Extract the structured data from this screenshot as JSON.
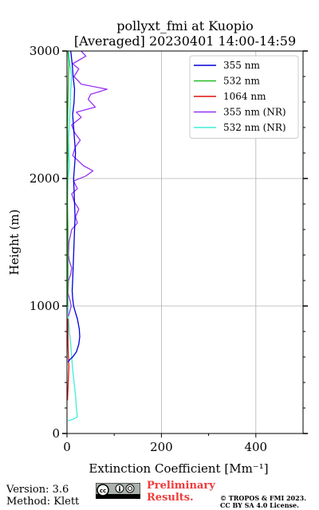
{
  "chart_data": {
    "type": "line",
    "title": "pollyxt_fmi at Kuopio",
    "subtitle": "[Averaged] 20230401 14:00-14:59",
    "xlabel": "Extinction Coefficient [Mm⁻¹]",
    "ylabel": "Height (m)",
    "xlim": [
      0,
      500
    ],
    "ylim": [
      0,
      3000
    ],
    "x_ticks": [
      0,
      200,
      400
    ],
    "y_ticks": [
      0,
      1000,
      2000,
      3000
    ],
    "grid": true,
    "legend_position": "top-right",
    "series": [
      {
        "name": "355 nm",
        "color": "#0000dd",
        "points": [
          [
            2,
            560
          ],
          [
            6,
            580
          ],
          [
            12,
            600
          ],
          [
            20,
            640
          ],
          [
            25,
            700
          ],
          [
            27,
            760
          ],
          [
            26,
            820
          ],
          [
            22,
            900
          ],
          [
            17,
            960
          ],
          [
            14,
            1000
          ],
          [
            12,
            1060
          ],
          [
            11,
            1120
          ],
          [
            12,
            1200
          ],
          [
            13,
            1300
          ],
          [
            14,
            1400
          ],
          [
            15,
            1500
          ],
          [
            16,
            1600
          ],
          [
            17,
            1700
          ],
          [
            16,
            1800
          ],
          [
            15,
            1900
          ],
          [
            14,
            2000
          ],
          [
            16,
            2100
          ],
          [
            18,
            2200
          ],
          [
            16,
            2300
          ],
          [
            14,
            2400
          ],
          [
            12,
            2500
          ],
          [
            15,
            2600
          ],
          [
            16,
            2700
          ],
          [
            13,
            2800
          ],
          [
            11,
            2900
          ],
          [
            8,
            3000
          ]
        ]
      },
      {
        "name": "532 nm",
        "color": "#22bb22",
        "points": [
          [
            1,
            1000
          ],
          [
            2,
            1200
          ],
          [
            2,
            1400
          ],
          [
            2,
            1600
          ],
          [
            1,
            1800
          ],
          [
            1,
            2000
          ],
          [
            2,
            2200
          ],
          [
            1,
            2400
          ],
          [
            2,
            2600
          ],
          [
            3,
            2800
          ],
          [
            4,
            2900
          ],
          [
            2,
            3000
          ]
        ]
      },
      {
        "name": "1064 nm",
        "color": "#dd1111",
        "points": [
          [
            1,
            260
          ],
          [
            2,
            350
          ],
          [
            3,
            440
          ],
          [
            4,
            520
          ],
          [
            3,
            600
          ],
          [
            2,
            700
          ],
          [
            2,
            800
          ],
          [
            2,
            900
          ]
        ]
      },
      {
        "name": "355 nm (NR)",
        "color": "#9a30f5",
        "points": [
          [
            3,
            920
          ],
          [
            6,
            960
          ],
          [
            9,
            1000
          ],
          [
            6,
            1050
          ],
          [
            2,
            1100
          ],
          [
            3,
            1200
          ],
          [
            8,
            1250
          ],
          [
            10,
            1300
          ],
          [
            5,
            1350
          ],
          [
            3,
            1400
          ],
          [
            4,
            1500
          ],
          [
            10,
            1600
          ],
          [
            22,
            1650
          ],
          [
            18,
            1700
          ],
          [
            25,
            1760
          ],
          [
            15,
            1820
          ],
          [
            10,
            1880
          ],
          [
            22,
            1920
          ],
          [
            14,
            1980
          ],
          [
            40,
            2020
          ],
          [
            55,
            2060
          ],
          [
            35,
            2100
          ],
          [
            12,
            2180
          ],
          [
            18,
            2250
          ],
          [
            28,
            2300
          ],
          [
            16,
            2360
          ],
          [
            10,
            2420
          ],
          [
            30,
            2480
          ],
          [
            20,
            2520
          ],
          [
            60,
            2560
          ],
          [
            45,
            2620
          ],
          [
            50,
            2660
          ],
          [
            85,
            2700
          ],
          [
            30,
            2740
          ],
          [
            15,
            2800
          ],
          [
            25,
            2860
          ],
          [
            12,
            2900
          ],
          [
            40,
            2960
          ],
          [
            30,
            3000
          ]
        ]
      },
      {
        "name": "532 nm (NR)",
        "color": "#3ef0d8",
        "points": [
          [
            2,
            100
          ],
          [
            12,
            110
          ],
          [
            22,
            130
          ],
          [
            20,
            200
          ],
          [
            18,
            300
          ],
          [
            15,
            400
          ],
          [
            12,
            500
          ],
          [
            10,
            600
          ],
          [
            8,
            700
          ],
          [
            5,
            800
          ],
          [
            3,
            900
          ],
          [
            2,
            1000
          ],
          [
            1,
            1400
          ],
          [
            1,
            1800
          ],
          [
            2,
            2000
          ],
          [
            5,
            2100
          ],
          [
            3,
            2300
          ],
          [
            6,
            2500
          ],
          [
            8,
            2700
          ],
          [
            10,
            2800
          ],
          [
            6,
            2900
          ],
          [
            3,
            3000
          ]
        ]
      }
    ]
  },
  "footer": {
    "version": "Version: 3.6",
    "method": "Method: Klett",
    "preliminary_line1": "Preliminary",
    "preliminary_line2": "Results.",
    "copyright_line1": "© TROPOS & FMI 2023.",
    "copyright_line2": "CC BY SA 4.0 License."
  },
  "license_badge": {
    "icons": [
      "cc-icon",
      "by-icon",
      "sa-icon"
    ]
  }
}
